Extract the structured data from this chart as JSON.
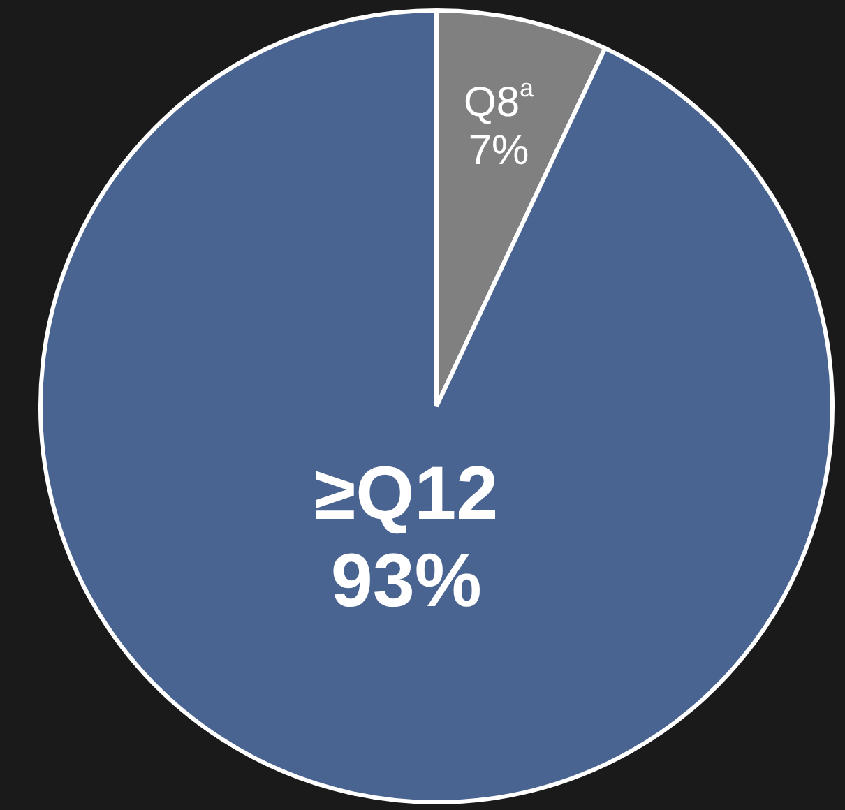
{
  "chart_data": {
    "type": "pie",
    "categories": [
      "Q8$^{a}$",
      "≥Q12"
    ],
    "values": [
      7,
      93
    ],
    "colors": [
      "#808080",
      "#4a6491"
    ],
    "value_labels": [
      "7%",
      "93%"
    ],
    "legend": false
  }
}
